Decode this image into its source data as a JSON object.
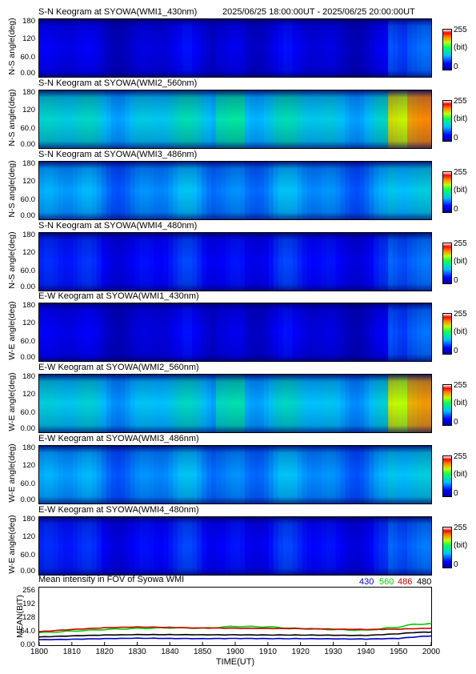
{
  "header": {
    "date_range": "2025/06/25 18:00:00UT - 2025/06/25 20:00:00UT"
  },
  "colorbar": {
    "max_label": "255",
    "unit_label": "(bit)",
    "min_label": "0"
  },
  "keograms": [
    {
      "title": "S-N Keogram at SYOWA(WMI1_430nm)",
      "ylabel": "N-S angle(deg)",
      "yticks": [
        "180",
        "120",
        "60.0",
        "0.00"
      ],
      "level": 0.1,
      "band_boost": 0.1
    },
    {
      "title": "S-N Keogram at SYOWA(WMI2_560nm)",
      "ylabel": "N-S angle(deg)",
      "yticks": [
        "180",
        "120",
        "60.0",
        "0.00"
      ],
      "level": 0.38,
      "band_boost": 0.3
    },
    {
      "title": "S-N Keogram at SYOWA(WMI3_486nm)",
      "ylabel": "N-S angle(deg)",
      "yticks": [
        "180",
        "120",
        "60.0",
        "0.00"
      ],
      "level": 0.3,
      "band_boost": 0.04
    },
    {
      "title": "S-N Keogram at SYOWA(WMI4_480nm)",
      "ylabel": "N-S angle(deg)",
      "yticks": [
        "180",
        "120",
        "60.0",
        "0.00"
      ],
      "level": 0.16,
      "band_boost": 0.06
    },
    {
      "title": "E-W Keogram at SYOWA(WMI1_430nm)",
      "ylabel": "W-E angle(deg)",
      "yticks": [
        "180",
        "120",
        "60.0",
        "0.00"
      ],
      "level": 0.1,
      "band_boost": 0.1
    },
    {
      "title": "E-W Keogram at SYOWA(WMI2_560nm)",
      "ylabel": "W-E angle(deg)",
      "yticks": [
        "180",
        "120",
        "60.0",
        "0.00"
      ],
      "level": 0.36,
      "band_boost": 0.3
    },
    {
      "title": "E-W Keogram at SYOWA(WMI3_486nm)",
      "ylabel": "W-E angle(deg)",
      "yticks": [
        "180",
        "120",
        "60.0",
        "0.00"
      ],
      "level": 0.3,
      "band_boost": 0.04
    },
    {
      "title": "E-W Keogram at SYOWA(WMI4_480nm)",
      "ylabel": "W-E angle(deg)",
      "yticks": [
        "180",
        "120",
        "60.0",
        "0.00"
      ],
      "level": 0.16,
      "band_boost": 0.06
    }
  ],
  "chart_data": {
    "type": "line",
    "title": "Mean intensity in FOV of Syowa WMI",
    "xlabel": "TIME(UT)",
    "ylabel": "MEAN(BIT)",
    "xlim": [
      1800,
      2000
    ],
    "ylim": [
      0,
      256
    ],
    "x_ticks": [
      "1800",
      "1810",
      "1820",
      "1830",
      "1840",
      "1850",
      "1900",
      "1910",
      "1920",
      "1930",
      "1940",
      "1950",
      "2000"
    ],
    "y_ticks": [
      "256",
      "192",
      "128",
      "64.0",
      "0.00"
    ],
    "x": [
      0,
      10,
      20,
      30,
      40,
      50,
      60,
      70,
      80,
      90,
      100,
      110,
      115,
      120
    ],
    "series": [
      {
        "name": "430",
        "color": "#0000cc",
        "values": [
          22,
          24,
          27,
          29,
          28,
          27,
          28,
          27,
          27,
          26,
          25,
          28,
          35,
          40
        ]
      },
      {
        "name": "560",
        "color": "#00cc00",
        "values": [
          55,
          62,
          70,
          75,
          78,
          76,
          85,
          82,
          74,
          70,
          66,
          82,
          95,
          97
        ]
      },
      {
        "name": "486",
        "color": "#cc0000",
        "values": [
          60,
          70,
          78,
          82,
          80,
          77,
          76,
          75,
          74,
          72,
          70,
          72,
          74,
          76
        ]
      },
      {
        "name": "480",
        "color": "#000000",
        "values": [
          35,
          40,
          44,
          46,
          46,
          45,
          45,
          44,
          44,
          43,
          42,
          50,
          56,
          58
        ]
      }
    ]
  }
}
